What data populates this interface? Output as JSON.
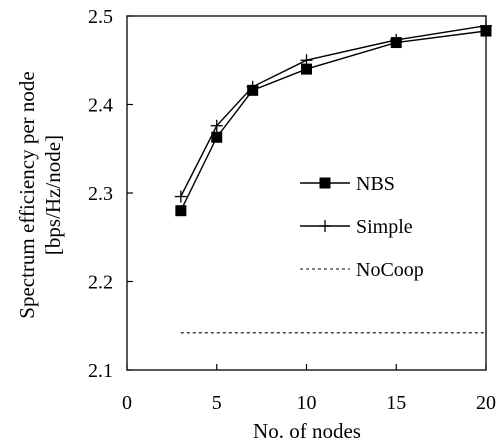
{
  "chart_data": {
    "type": "line",
    "xlabel": "No. of nodes",
    "ylabel_lines": [
      "Spectrum efficiency per node",
      "[bps/Hz/node]"
    ],
    "xlim": [
      0,
      20
    ],
    "ylim": [
      2.1,
      2.5
    ],
    "xticks": [
      0,
      5,
      10,
      15,
      20
    ],
    "yticks": [
      2.1,
      2.2,
      2.3,
      2.4,
      2.5
    ],
    "xtick_labels": [
      "0",
      "5",
      "10",
      "15",
      "20"
    ],
    "ytick_labels": [
      "2.1",
      "2.2",
      "2.3",
      "2.4",
      "2.5"
    ],
    "grid": false,
    "legend_position": "center-right",
    "series": [
      {
        "name": "NBS",
        "marker": "square",
        "line": "solid",
        "x": [
          3,
          5,
          7,
          10,
          15,
          20
        ],
        "y": [
          2.28,
          2.363,
          2.416,
          2.44,
          2.47,
          2.483
        ]
      },
      {
        "name": "Simple",
        "marker": "plus",
        "line": "solid",
        "x": [
          3,
          5,
          7,
          10,
          15,
          20
        ],
        "y": [
          2.296,
          2.376,
          2.42,
          2.45,
          2.473,
          2.489
        ]
      },
      {
        "name": "NoCoop",
        "marker": "none",
        "line": "dashed",
        "x": [
          3,
          20
        ],
        "y": [
          2.142,
          2.142
        ]
      }
    ]
  }
}
